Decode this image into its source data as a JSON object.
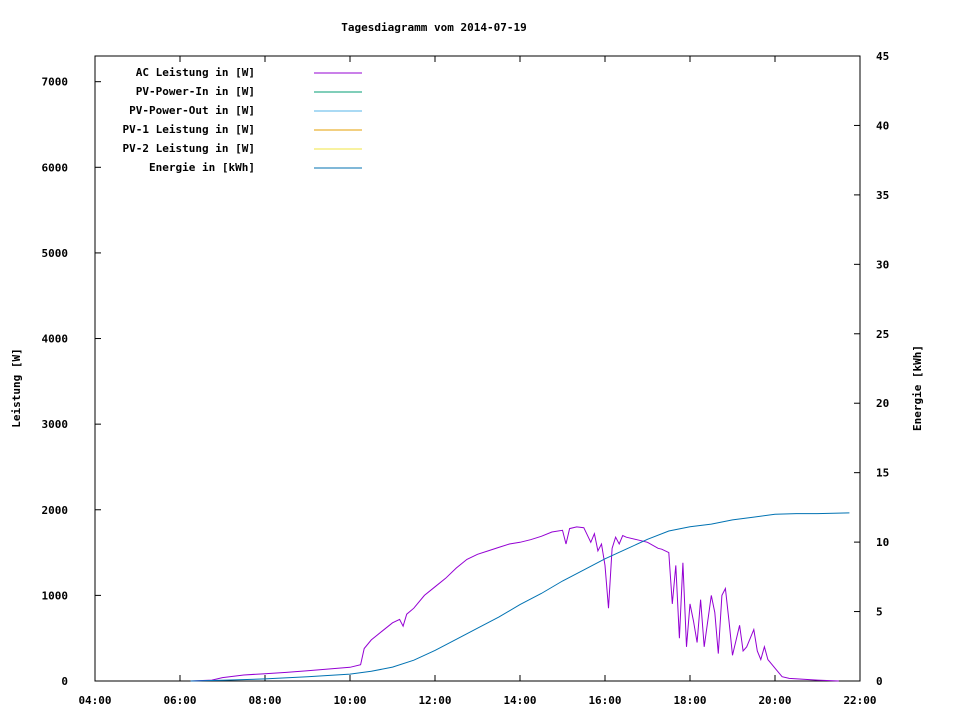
{
  "chart_data": {
    "type": "line",
    "title": "Tagesdiagramm vom 2014-07-19",
    "xlabel": "",
    "ylabel": "Leistung [W]",
    "y2label": "Energie [kWh]",
    "xlim": [
      "04:00",
      "22:00"
    ],
    "ylim": [
      0,
      7300
    ],
    "y2lim": [
      0,
      45
    ],
    "x_ticks": [
      "04:00",
      "06:00",
      "08:00",
      "10:00",
      "12:00",
      "14:00",
      "16:00",
      "18:00",
      "20:00",
      "22:00"
    ],
    "y_ticks": [
      0,
      1000,
      2000,
      3000,
      4000,
      5000,
      6000,
      7000
    ],
    "y2_ticks": [
      0,
      5,
      10,
      15,
      20,
      25,
      30,
      35,
      40,
      45
    ],
    "legend_position": "top-left",
    "grid": false,
    "series": [
      {
        "name": "AC Leistung in [W]",
        "color": "#9400d3",
        "axis": "left",
        "points": [
          [
            "06:15",
            0
          ],
          [
            "06:45",
            10
          ],
          [
            "07:00",
            40
          ],
          [
            "07:30",
            70
          ],
          [
            "08:00",
            85
          ],
          [
            "08:30",
            100
          ],
          [
            "09:00",
            120
          ],
          [
            "09:30",
            140
          ],
          [
            "10:00",
            160
          ],
          [
            "10:15",
            190
          ],
          [
            "10:20",
            380
          ],
          [
            "10:30",
            480
          ],
          [
            "10:45",
            580
          ],
          [
            "11:00",
            680
          ],
          [
            "11:10",
            720
          ],
          [
            "11:15",
            640
          ],
          [
            "11:20",
            780
          ],
          [
            "11:30",
            850
          ],
          [
            "11:45",
            1000
          ],
          [
            "12:00",
            1100
          ],
          [
            "12:15",
            1200
          ],
          [
            "12:30",
            1320
          ],
          [
            "12:45",
            1420
          ],
          [
            "13:00",
            1480
          ],
          [
            "13:15",
            1520
          ],
          [
            "13:30",
            1560
          ],
          [
            "13:45",
            1600
          ],
          [
            "14:00",
            1620
          ],
          [
            "14:15",
            1650
          ],
          [
            "14:30",
            1690
          ],
          [
            "14:45",
            1740
          ],
          [
            "15:00",
            1760
          ],
          [
            "15:05",
            1600
          ],
          [
            "15:10",
            1780
          ],
          [
            "15:20",
            1800
          ],
          [
            "15:30",
            1790
          ],
          [
            "15:40",
            1620
          ],
          [
            "15:45",
            1720
          ],
          [
            "15:50",
            1520
          ],
          [
            "15:55",
            1600
          ],
          [
            "16:00",
            1350
          ],
          [
            "16:05",
            850
          ],
          [
            "16:10",
            1550
          ],
          [
            "16:15",
            1680
          ],
          [
            "16:20",
            1600
          ],
          [
            "16:25",
            1700
          ],
          [
            "16:30",
            1680
          ],
          [
            "16:45",
            1650
          ],
          [
            "17:00",
            1620
          ],
          [
            "17:15",
            1550
          ],
          [
            "17:20",
            1540
          ],
          [
            "17:30",
            1500
          ],
          [
            "17:35",
            900
          ],
          [
            "17:40",
            1350
          ],
          [
            "17:45",
            500
          ],
          [
            "17:50",
            1380
          ],
          [
            "17:55",
            400
          ],
          [
            "18:00",
            900
          ],
          [
            "18:05",
            700
          ],
          [
            "18:10",
            450
          ],
          [
            "18:15",
            950
          ],
          [
            "18:20",
            400
          ],
          [
            "18:30",
            1000
          ],
          [
            "18:35",
            800
          ],
          [
            "18:40",
            320
          ],
          [
            "18:45",
            1000
          ],
          [
            "18:50",
            1080
          ],
          [
            "18:55",
            700
          ],
          [
            "19:00",
            300
          ],
          [
            "19:10",
            650
          ],
          [
            "19:15",
            350
          ],
          [
            "19:20",
            400
          ],
          [
            "19:30",
            600
          ],
          [
            "19:35",
            350
          ],
          [
            "19:40",
            250
          ],
          [
            "19:45",
            400
          ],
          [
            "19:50",
            250
          ],
          [
            "19:55",
            200
          ],
          [
            "20:00",
            150
          ],
          [
            "20:10",
            50
          ],
          [
            "20:20",
            30
          ],
          [
            "20:40",
            20
          ],
          [
            "21:00",
            10
          ],
          [
            "21:30",
            0
          ]
        ]
      },
      {
        "name": "PV-Power-In in [W]",
        "color": "#009e73",
        "axis": "left",
        "points": []
      },
      {
        "name": "PV-Power-Out in [W]",
        "color": "#56b4e9",
        "axis": "left",
        "points": []
      },
      {
        "name": "PV-1 Leistung in [W]",
        "color": "#e69f00",
        "axis": "left",
        "points": []
      },
      {
        "name": "PV-2 Leistung in [W]",
        "color": "#f0e442",
        "axis": "left",
        "points": []
      },
      {
        "name": "Energie in [kWh]",
        "color": "#0072b2",
        "axis": "right",
        "points": [
          [
            "06:15",
            0
          ],
          [
            "07:00",
            0.05
          ],
          [
            "08:00",
            0.15
          ],
          [
            "09:00",
            0.3
          ],
          [
            "10:00",
            0.5
          ],
          [
            "10:30",
            0.7
          ],
          [
            "11:00",
            1.0
          ],
          [
            "11:30",
            1.5
          ],
          [
            "12:00",
            2.2
          ],
          [
            "12:30",
            3.0
          ],
          [
            "13:00",
            3.8
          ],
          [
            "13:30",
            4.6
          ],
          [
            "14:00",
            5.5
          ],
          [
            "14:30",
            6.3
          ],
          [
            "15:00",
            7.2
          ],
          [
            "15:30",
            8.0
          ],
          [
            "16:00",
            8.8
          ],
          [
            "16:30",
            9.5
          ],
          [
            "17:00",
            10.2
          ],
          [
            "17:30",
            10.8
          ],
          [
            "18:00",
            11.1
          ],
          [
            "18:30",
            11.3
          ],
          [
            "19:00",
            11.6
          ],
          [
            "19:30",
            11.8
          ],
          [
            "20:00",
            12.0
          ],
          [
            "20:30",
            12.05
          ],
          [
            "21:00",
            12.05
          ],
          [
            "21:45",
            12.1
          ]
        ]
      }
    ]
  }
}
